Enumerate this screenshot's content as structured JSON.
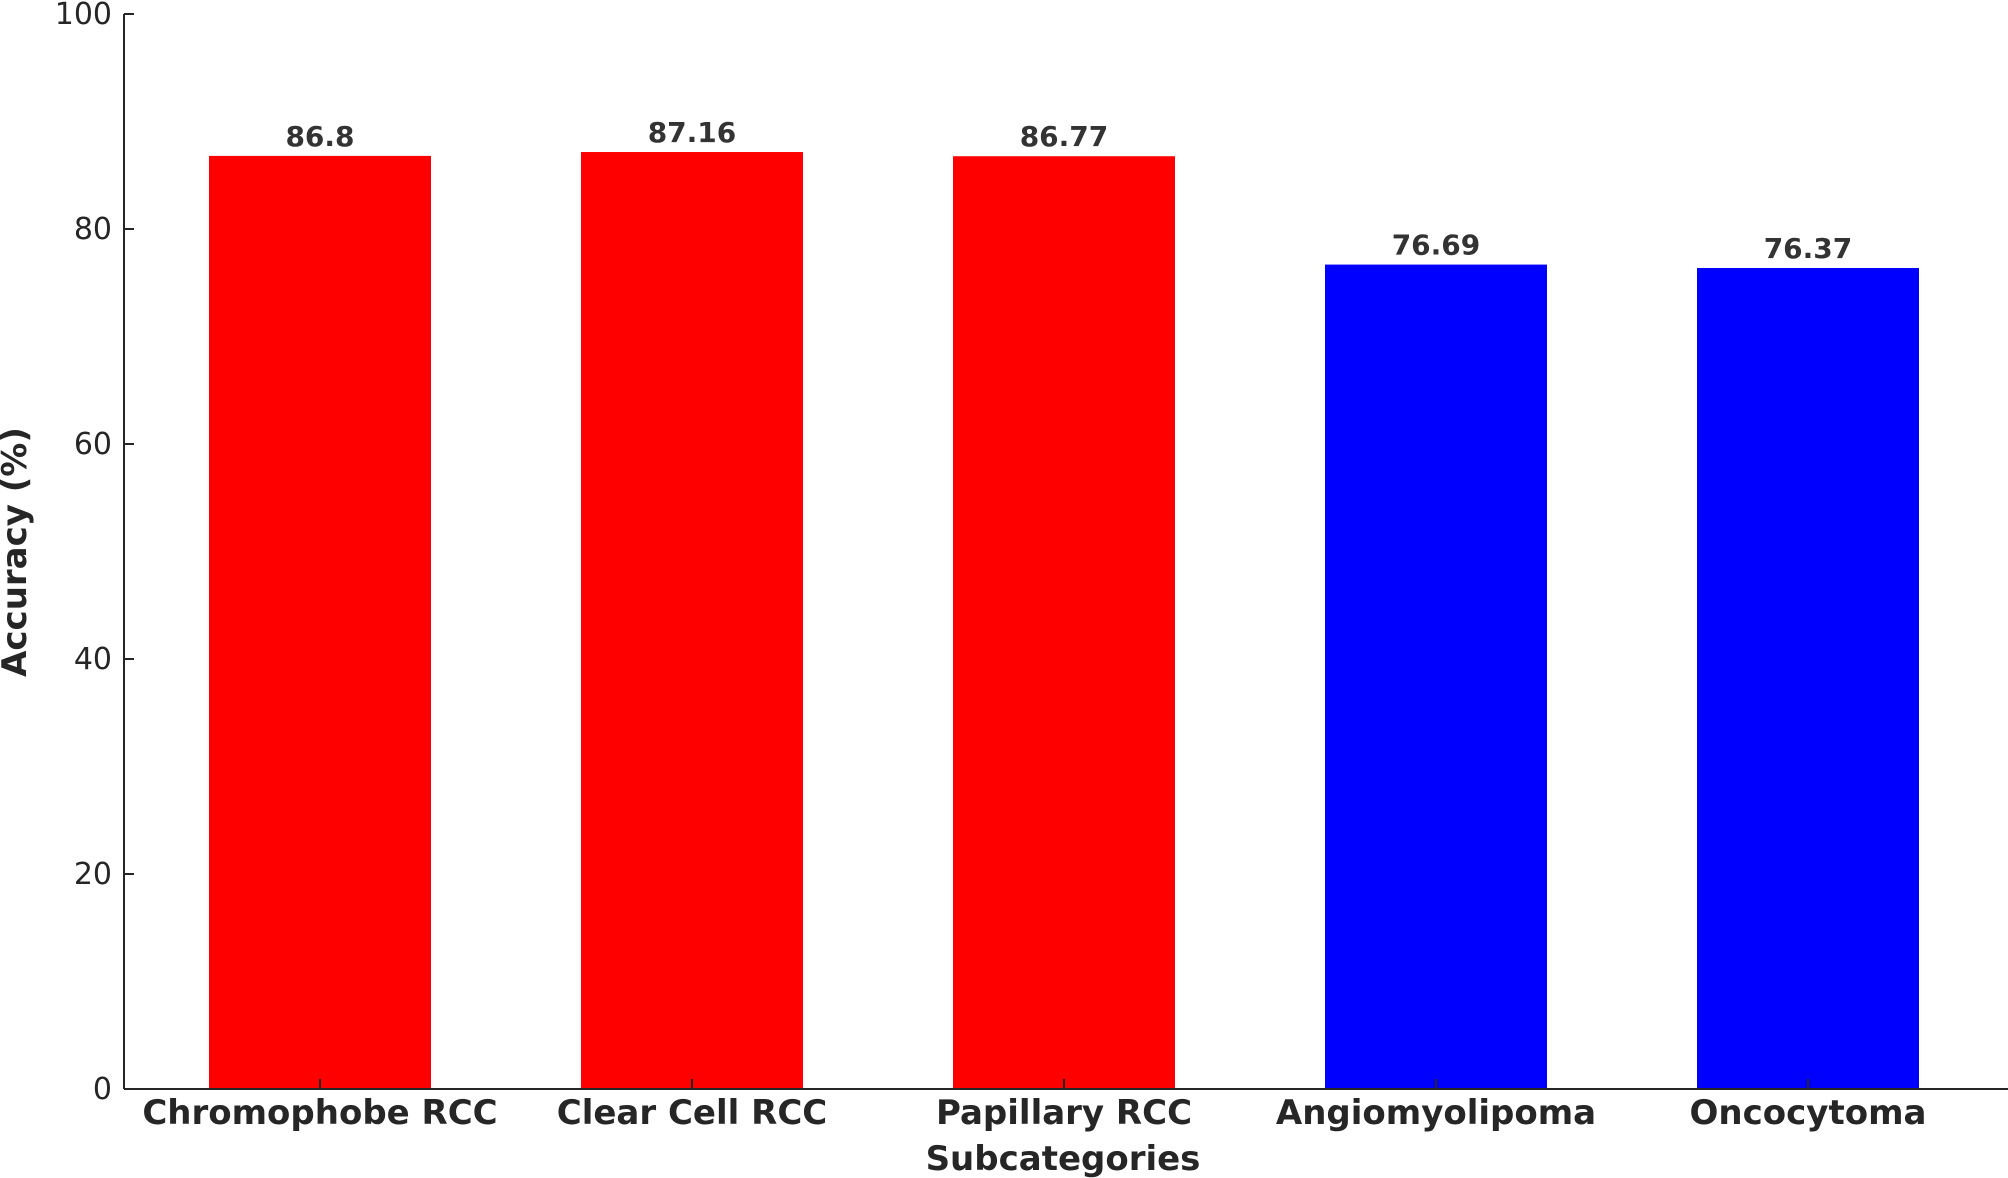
{
  "chart_data": {
    "type": "bar",
    "title": "",
    "xlabel": "Subcategories",
    "ylabel": "Accuracy (%)",
    "ylim": [
      0,
      100
    ],
    "yticks": [
      0,
      20,
      40,
      60,
      80,
      100
    ],
    "ytick_labels": [
      "0",
      "20",
      "40",
      "60",
      "80",
      "100"
    ],
    "categories": [
      "Chromophobe RCC",
      "Clear Cell RCC",
      "Papillary RCC",
      "Angiomyolipoma",
      "Oncocytoma"
    ],
    "values": [
      86.8,
      87.16,
      86.77,
      76.69,
      76.37
    ],
    "value_labels": [
      "86.8",
      "87.16",
      "86.77",
      "76.69",
      "76.37"
    ],
    "bar_colors": [
      "#ff0000",
      "#ff0000",
      "#ff0000",
      "#0000ff",
      "#0000ff"
    ],
    "grid": false,
    "legend": "none"
  }
}
